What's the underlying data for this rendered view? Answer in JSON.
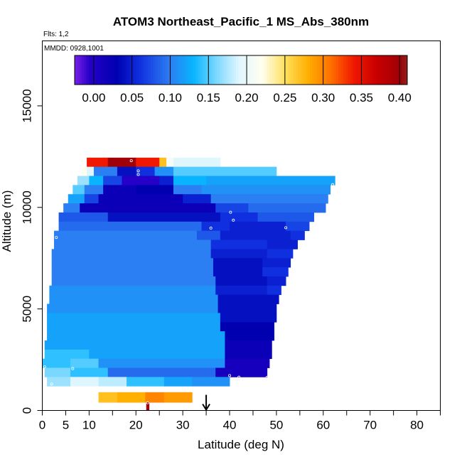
{
  "chart_data": {
    "type": "heatmap",
    "title": "ATOM3 Northeast_Pacific_1 MS_Abs_380nm",
    "flights_label": "Flts: 1,2",
    "dates_label": "MMDD: 0928,1001",
    "xlabel": "Latitude (deg N)",
    "ylabel": "Altitude (m)",
    "xlim": [
      0,
      85
    ],
    "ylim": [
      0,
      18200
    ],
    "xticks": [
      0,
      5,
      10,
      20,
      30,
      40,
      50,
      60,
      70,
      80
    ],
    "xtick_labels": [
      "0",
      "5",
      "10",
      "20",
      "30",
      "40",
      "50",
      "60",
      "70",
      "80"
    ],
    "yticks": [
      0,
      5000,
      10000,
      15000
    ],
    "ytick_labels": [
      "0",
      "5000",
      "10000",
      "15000"
    ],
    "colorbar": {
      "range": [
        -0.025,
        0.41
      ],
      "ticks": [
        0.0,
        0.05,
        0.1,
        0.15,
        0.2,
        0.25,
        0.3,
        0.35,
        0.4
      ],
      "tick_labels": [
        "0.00",
        "0.05",
        "0.10",
        "0.15",
        "0.20",
        "0.25",
        "0.30",
        "0.35",
        "0.40"
      ],
      "stops": [
        {
          "v": -0.025,
          "c": "#7a1fe6"
        },
        {
          "v": -0.005,
          "c": "#2600c8"
        },
        {
          "v": 0.03,
          "c": "#0000b0"
        },
        {
          "v": 0.06,
          "c": "#1030e0"
        },
        {
          "v": 0.1,
          "c": "#2c7ff2"
        },
        {
          "v": 0.13,
          "c": "#08b4ff"
        },
        {
          "v": 0.16,
          "c": "#7ad8ff"
        },
        {
          "v": 0.19,
          "c": "#e0f6ff"
        },
        {
          "v": 0.22,
          "c": "#fffff0"
        },
        {
          "v": 0.25,
          "c": "#ffe060"
        },
        {
          "v": 0.28,
          "c": "#ffb000"
        },
        {
          "v": 0.31,
          "c": "#ff7000"
        },
        {
          "v": 0.34,
          "c": "#f01800"
        },
        {
          "v": 0.37,
          "c": "#c80000"
        },
        {
          "v": 0.4,
          "c": "#a00008"
        },
        {
          "v": 0.41,
          "c": "#902020"
        }
      ]
    },
    "arrow_latitude": 35,
    "layers": [
      {
        "alt": [
          12000,
          12450
        ],
        "segs": [
          [
            9.5,
            14,
            0.34
          ],
          [
            14,
            20,
            0.4
          ],
          [
            20,
            25,
            0.34
          ],
          [
            25,
            26.5,
            0.27
          ],
          [
            26.5,
            28,
            0.21
          ],
          [
            28,
            38,
            0.19
          ]
        ]
      },
      {
        "alt": [
          11550,
          12000
        ],
        "segs": [
          [
            8.5,
            9.5,
            0.22
          ],
          [
            9.5,
            11,
            0.19
          ],
          [
            11,
            16,
            0.1
          ],
          [
            16,
            20,
            0.04
          ],
          [
            20,
            24,
            0.06
          ],
          [
            24,
            28,
            0.11
          ],
          [
            28,
            50,
            0.15
          ]
        ]
      },
      {
        "alt": [
          11100,
          11550
        ],
        "segs": [
          [
            7.5,
            10,
            0.17
          ],
          [
            10,
            13,
            0.13
          ],
          [
            13,
            17,
            0.07
          ],
          [
            17,
            25,
            -0.005
          ],
          [
            25,
            28,
            0.05
          ],
          [
            28,
            35,
            0.13
          ],
          [
            35,
            62.5,
            0.12
          ]
        ]
      },
      {
        "alt": [
          10650,
          11100
        ],
        "segs": [
          [
            6.5,
            9,
            0.15
          ],
          [
            9,
            13,
            0.1
          ],
          [
            13,
            20,
            0.02
          ],
          [
            20,
            28,
            0.03
          ],
          [
            28,
            34,
            0.1
          ],
          [
            34,
            61.5,
            0.11
          ]
        ]
      },
      {
        "alt": [
          10200,
          10650
        ],
        "segs": [
          [
            5.5,
            9,
            0.12
          ],
          [
            9,
            12,
            0.07
          ],
          [
            12,
            30,
            0.02
          ],
          [
            30,
            36,
            0.05
          ],
          [
            36,
            61,
            0.1
          ]
        ]
      },
      {
        "alt": [
          9750,
          10200
        ],
        "segs": [
          [
            4.5,
            8,
            0.1
          ],
          [
            8,
            37,
            0.02
          ],
          [
            37,
            44,
            0.07
          ],
          [
            44,
            60.5,
            0.09
          ]
        ]
      },
      {
        "alt": [
          9300,
          9750
        ],
        "segs": [
          [
            3.5,
            14,
            0.08
          ],
          [
            14,
            38,
            0.04
          ],
          [
            38,
            46,
            0.06
          ],
          [
            46,
            58,
            0.08
          ]
        ]
      },
      {
        "alt": [
          8850,
          9300
        ],
        "segs": [
          [
            3.5,
            34,
            0.09
          ],
          [
            34,
            40,
            0.06
          ],
          [
            40,
            52,
            0.05
          ],
          [
            52,
            57,
            0.07
          ]
        ]
      },
      {
        "alt": [
          8400,
          8850
        ],
        "segs": [
          [
            2.5,
            33,
            0.1
          ],
          [
            33,
            38,
            0.08
          ],
          [
            38,
            53,
            0.05
          ],
          [
            53,
            56,
            0.06
          ]
        ]
      },
      {
        "alt": [
          7950,
          8400
        ],
        "segs": [
          [
            2.5,
            36,
            0.1
          ],
          [
            36,
            48,
            0.06
          ],
          [
            48,
            54.5,
            0.05
          ]
        ]
      },
      {
        "alt": [
          7500,
          7950
        ],
        "segs": [
          [
            2,
            36,
            0.1
          ],
          [
            36,
            48,
            0.05
          ],
          [
            48,
            53.5,
            0.06
          ]
        ]
      },
      {
        "alt": [
          7050,
          7500
        ],
        "segs": [
          [
            2,
            36.5,
            0.1
          ],
          [
            36.5,
            47,
            0.04
          ],
          [
            47,
            53,
            0.05
          ]
        ]
      },
      {
        "alt": [
          6600,
          7050
        ],
        "segs": [
          [
            2,
            36.5,
            0.1
          ],
          [
            36.5,
            47,
            0.04
          ],
          [
            47,
            52.5,
            0.06
          ]
        ]
      },
      {
        "alt": [
          6150,
          6600
        ],
        "segs": [
          [
            2,
            37,
            0.1
          ],
          [
            37,
            48,
            0.04
          ],
          [
            48,
            52,
            0.05
          ]
        ]
      },
      {
        "alt": [
          5700,
          6150
        ],
        "segs": [
          [
            1.5,
            37,
            0.11
          ],
          [
            37,
            48,
            0.05
          ],
          [
            48,
            51,
            0.06
          ]
        ]
      },
      {
        "alt": [
          5250,
          5700
        ],
        "segs": [
          [
            1.5,
            37.5,
            0.11
          ],
          [
            37.5,
            50.5,
            0.04
          ]
        ]
      },
      {
        "alt": [
          4800,
          5250
        ],
        "segs": [
          [
            1,
            37.5,
            0.11
          ],
          [
            37.5,
            50,
            0.04
          ]
        ]
      },
      {
        "alt": [
          4350,
          4800
        ],
        "segs": [
          [
            1,
            38,
            0.12
          ],
          [
            38,
            50,
            0.04
          ]
        ]
      },
      {
        "alt": [
          3900,
          4350
        ],
        "segs": [
          [
            1,
            38,
            0.12
          ],
          [
            38,
            49.5,
            0.03
          ]
        ]
      },
      {
        "alt": [
          3450,
          3900
        ],
        "segs": [
          [
            1,
            39,
            0.12
          ],
          [
            39,
            49.5,
            0.03
          ]
        ]
      },
      {
        "alt": [
          3000,
          3450
        ],
        "segs": [
          [
            0.5,
            39,
            0.12
          ],
          [
            39,
            49,
            0.02
          ]
        ]
      },
      {
        "alt": [
          2550,
          3000
        ],
        "segs": [
          [
            0.5,
            10,
            0.14
          ],
          [
            10,
            39,
            0.12
          ],
          [
            39,
            49,
            0.02
          ]
        ]
      },
      {
        "alt": [
          2100,
          2550
        ],
        "segs": [
          [
            0,
            6,
            0.14
          ],
          [
            6,
            12,
            0.15
          ],
          [
            12,
            39,
            0.11
          ],
          [
            39,
            48.5,
            0.01
          ]
        ]
      },
      {
        "alt": [
          1650,
          2100
        ],
        "segs": [
          [
            0.5,
            6,
            0.16
          ],
          [
            6,
            14,
            0.14
          ],
          [
            14,
            37,
            0.09
          ],
          [
            37,
            48,
            0.01
          ]
        ]
      },
      {
        "alt": [
          1200,
          1650
        ],
        "segs": [
          [
            1,
            6,
            0.17
          ],
          [
            6,
            12,
            0.19
          ],
          [
            12,
            18,
            0.18
          ],
          [
            18,
            26,
            0.14
          ],
          [
            26,
            32,
            0.12
          ],
          [
            32,
            40,
            0.11
          ]
        ]
      },
      {
        "alt": [
          400,
          900
        ],
        "segs": [
          [
            12,
            16,
            0.27
          ],
          [
            16,
            22,
            0.28
          ],
          [
            22,
            26,
            0.3
          ],
          [
            26,
            32,
            0.29
          ]
        ]
      },
      {
        "alt": [
          0,
          400
        ],
        "segs": [
          [
            22.2,
            22.8,
            0.4
          ]
        ]
      }
    ],
    "markers": [
      [
        19,
        12300
      ],
      [
        20.5,
        11800
      ],
      [
        20.5,
        11620
      ],
      [
        62,
        11120
      ],
      [
        40.2,
        9760
      ],
      [
        40.8,
        9370
      ],
      [
        36,
        8980
      ],
      [
        52,
        9000
      ],
      [
        3,
        8520
      ],
      [
        0.5,
        2150
      ],
      [
        6.5,
        2060
      ],
      [
        2,
        1300
      ],
      [
        40,
        1720
      ],
      [
        42,
        1640
      ],
      [
        48,
        1630
      ],
      [
        22.5,
        380
      ]
    ]
  }
}
